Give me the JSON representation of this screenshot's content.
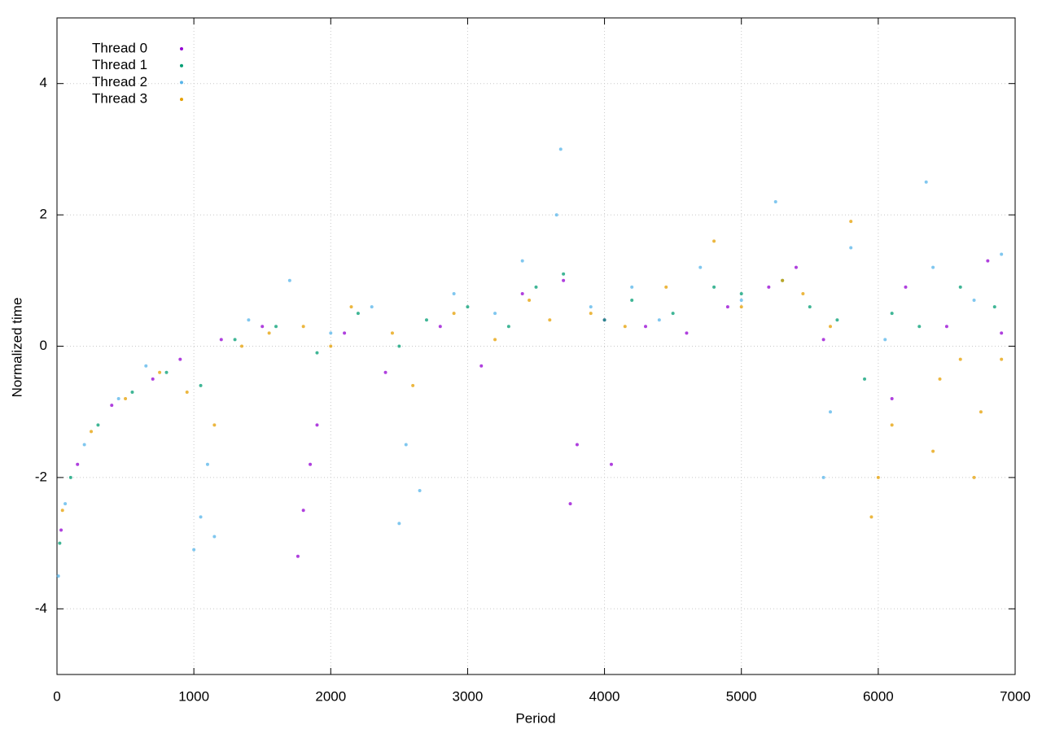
{
  "chart_data": {
    "type": "scatter",
    "x_label": "Period",
    "y_label": "Normalized time",
    "xlim": [
      0,
      7000
    ],
    "ylim": [
      -5,
      5
    ],
    "xticks": [
      0,
      1000,
      2000,
      3000,
      4000,
      5000,
      6000,
      7000
    ],
    "yticks": [
      -4,
      -2,
      0,
      2,
      4
    ],
    "grid": true,
    "legend": "top-left",
    "series": [
      {
        "name": "Thread 0",
        "color": "#9400d3",
        "x": [
          30,
          150,
          400,
          700,
          900,
          1200,
          1500,
          1760,
          1800,
          1850,
          1900,
          2100,
          2400,
          2800,
          3100,
          3400,
          3700,
          3750,
          3800,
          4000,
          4050,
          4300,
          4600,
          4900,
          5200,
          5400,
          5600,
          6100,
          6200,
          6500,
          6800,
          6900
        ],
        "values": [
          -2.8,
          -1.8,
          -0.9,
          -0.5,
          -0.2,
          0.1,
          0.3,
          -3.2,
          -2.5,
          -1.8,
          -1.2,
          0.2,
          -0.4,
          0.3,
          -0.3,
          0.8,
          1.0,
          -2.4,
          -1.5,
          0.4,
          -1.8,
          0.3,
          0.2,
          0.6,
          0.9,
          1.2,
          0.1,
          -0.8,
          0.9,
          0.3,
          1.3,
          0.2
        ]
      },
      {
        "name": "Thread 1",
        "color": "#009e73",
        "x": [
          20,
          100,
          300,
          550,
          800,
          1050,
          1300,
          1600,
          1900,
          2200,
          2500,
          2700,
          3000,
          3300,
          3500,
          3700,
          4000,
          4200,
          4500,
          4800,
          5000,
          5300,
          5500,
          5700,
          5900,
          6100,
          6300,
          6600,
          6850
        ],
        "values": [
          -3.0,
          -2.0,
          -1.2,
          -0.7,
          -0.4,
          -0.6,
          0.1,
          0.3,
          -0.1,
          0.5,
          0.0,
          0.4,
          0.6,
          0.3,
          0.9,
          1.1,
          0.4,
          0.7,
          0.5,
          0.9,
          0.8,
          1.0,
          0.6,
          0.4,
          -0.5,
          0.5,
          0.3,
          0.9,
          0.6
        ]
      },
      {
        "name": "Thread 2",
        "color": "#56b4e9",
        "x": [
          10,
          60,
          200,
          450,
          650,
          1000,
          1050,
          1100,
          1150,
          1400,
          1700,
          2000,
          2300,
          2500,
          2550,
          2650,
          2900,
          3200,
          3400,
          3650,
          3680,
          3900,
          4200,
          4400,
          4700,
          5000,
          5250,
          5600,
          5650,
          5800,
          6050,
          6350,
          6400,
          6700,
          6900
        ],
        "values": [
          -3.5,
          -2.4,
          -1.5,
          -0.8,
          -0.3,
          -3.1,
          -2.6,
          -1.8,
          -2.9,
          0.4,
          1.0,
          0.2,
          0.6,
          -2.7,
          -1.5,
          -2.2,
          0.8,
          0.5,
          1.3,
          2.0,
          3.0,
          0.6,
          0.9,
          0.4,
          1.2,
          0.7,
          2.2,
          -2.0,
          -1.0,
          1.5,
          0.1,
          2.5,
          1.2,
          0.7,
          1.4
        ]
      },
      {
        "name": "Thread 3",
        "color": "#e69f00",
        "x": [
          40,
          250,
          500,
          750,
          950,
          1150,
          1350,
          1550,
          1800,
          2000,
          2150,
          2450,
          2600,
          2900,
          3200,
          3450,
          3600,
          3900,
          4150,
          4450,
          4800,
          5000,
          5300,
          5450,
          5650,
          5800,
          5950,
          6000,
          6100,
          6400,
          6450,
          6600,
          6700,
          6750,
          6900
        ],
        "values": [
          -2.5,
          -1.3,
          -0.8,
          -0.4,
          -0.7,
          -1.2,
          0.0,
          0.2,
          0.3,
          0.0,
          0.6,
          0.2,
          -0.6,
          0.5,
          0.1,
          0.7,
          0.4,
          0.5,
          0.3,
          0.9,
          1.6,
          0.6,
          1.0,
          0.8,
          0.3,
          1.9,
          -2.6,
          -2.0,
          -1.2,
          -1.6,
          -0.5,
          -0.2,
          -2.0,
          -1.0,
          -0.2
        ]
      }
    ]
  }
}
